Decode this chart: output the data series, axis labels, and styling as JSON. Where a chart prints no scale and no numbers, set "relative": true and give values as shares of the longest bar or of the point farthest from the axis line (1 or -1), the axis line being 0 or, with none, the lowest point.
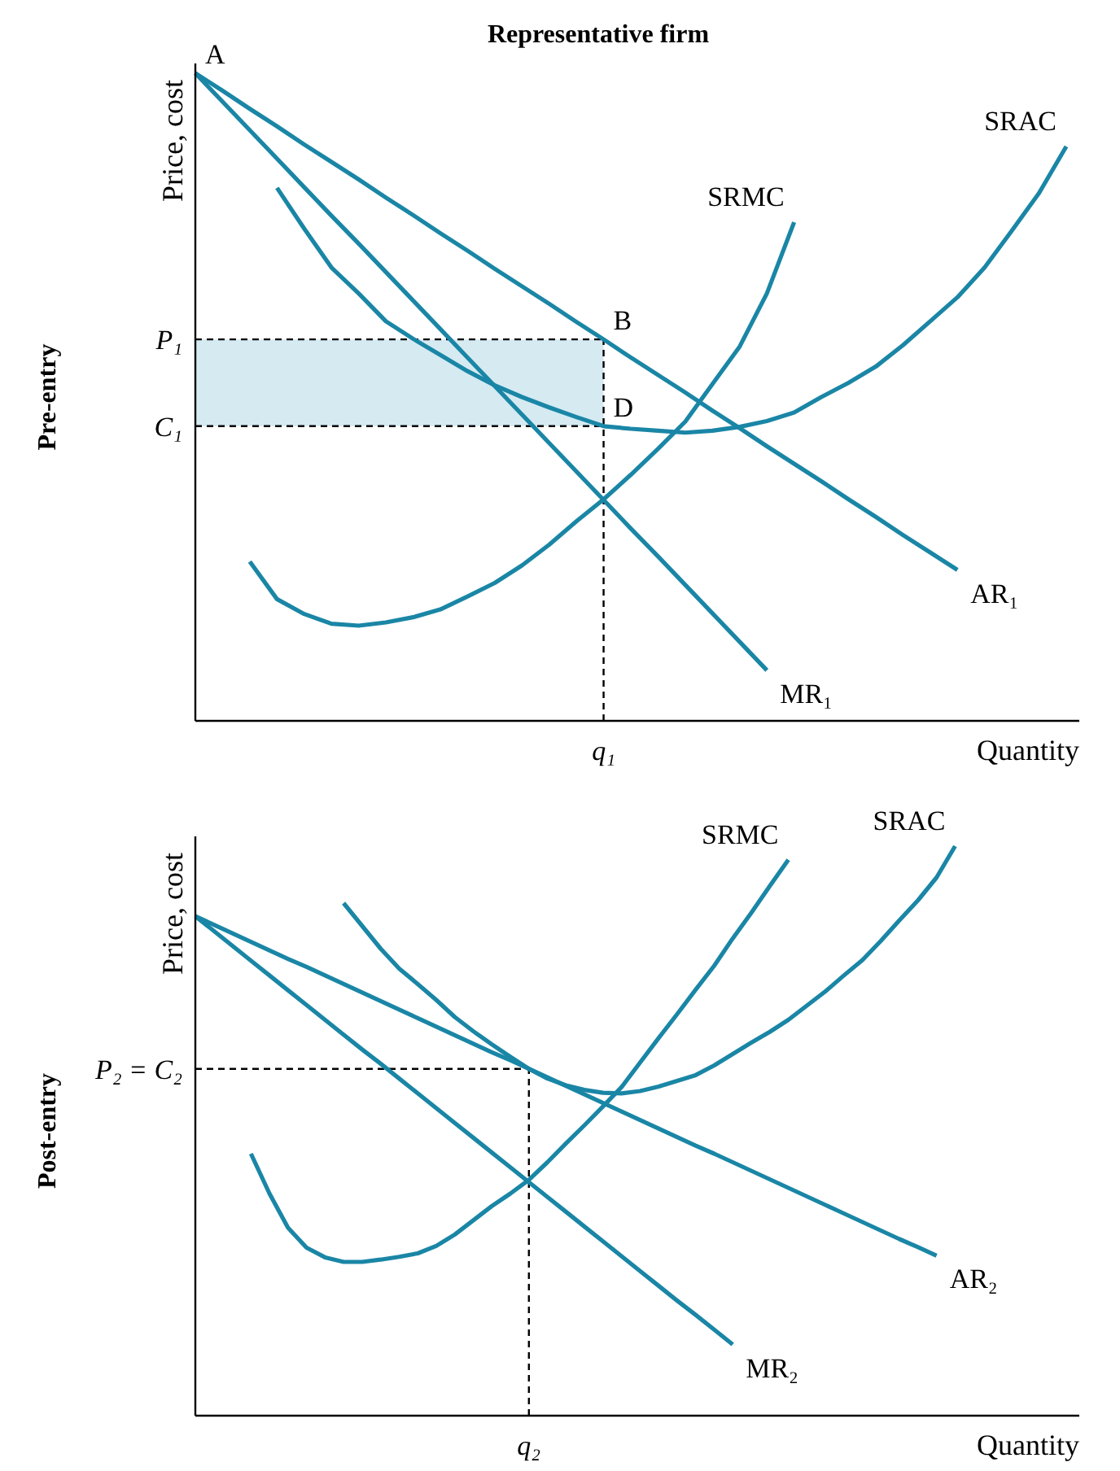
{
  "chart_data": [
    {
      "type": "line",
      "title": "Representative firm",
      "xlabel": "Quantity",
      "ylabel": "Price, cost",
      "relative": true,
      "categories": [
        null,
        null,
        null,
        null,
        null,
        null,
        null,
        null,
        null,
        null,
        null,
        null,
        null,
        null,
        null,
        null,
        null,
        null,
        null,
        null,
        null,
        null,
        null,
        null,
        null,
        null,
        null,
        null,
        null,
        null,
        null,
        null,
        null
      ],
      "series": [
        {
          "name": "AR₁",
          "color": "#1a86a6",
          "values": [
            1,
            0.973,
            0.945,
            0.918,
            0.89,
            0.863,
            0.836,
            0.808,
            0.781,
            0.753,
            0.726,
            0.698,
            0.671,
            0.644,
            0.616,
            0.589,
            0.561,
            0.534,
            0.507,
            0.479,
            0.452,
            0.424,
            0.397,
            0.37,
            0.342,
            0.315,
            0.287,
            0.26,
            0.233,
            null,
            null,
            null,
            null
          ]
        },
        {
          "name": "MR₁",
          "color": "#1a86a6",
          "values": [
            1,
            0.956,
            0.912,
            0.868,
            0.824,
            0.78,
            0.737,
            0.693,
            0.649,
            0.605,
            0.561,
            0.517,
            0.473,
            0.429,
            0.385,
            0.341,
            0.297,
            0.254,
            0.21,
            0.166,
            0.122,
            0.078,
            null,
            null,
            null,
            null,
            null,
            null,
            null,
            null,
            null,
            null,
            null
          ]
        },
        {
          "name": "SRMC",
          "color": "#1a86a6",
          "values": [
            null,
            null,
            0.246,
            0.188,
            0.165,
            0.15,
            0.147,
            0.152,
            0.16,
            0.172,
            0.192,
            0.213,
            0.24,
            0.272,
            0.308,
            0.342,
            0.38,
            0.42,
            0.462,
            0.52,
            0.578,
            0.66,
            0.77,
            null,
            null,
            null,
            null,
            null,
            null,
            null,
            null,
            null,
            null
          ]
        },
        {
          "name": "SRAC",
          "color": "#1a86a6",
          "values": [
            null,
            null,
            null,
            0.823,
            0.76,
            0.7,
            0.66,
            0.617,
            0.59,
            0.565,
            0.54,
            0.518,
            0.5,
            0.484,
            0.469,
            0.455,
            0.451,
            0.448,
            0.445,
            0.448,
            0.454,
            0.463,
            0.476,
            0.5,
            0.522,
            0.547,
            0.58,
            0.617,
            0.654,
            0.7,
            0.757,
            0.815,
            0.887
          ]
        }
      ],
      "ref_lines": [
        {
          "axis": "y",
          "value": 0.589,
          "label": "P₁",
          "line_style": "dashed"
        },
        {
          "axis": "y",
          "value": 0.455,
          "label": "C₁",
          "line_style": "dashed"
        }
      ],
      "bands": [
        {
          "axis": "y",
          "from": 0.455,
          "to": 0.589,
          "color": "#d6eaf2"
        }
      ],
      "annotations": [
        "Pre-entry",
        "A",
        "B",
        "D",
        "q₁"
      ]
    },
    {
      "type": "line",
      "xlabel": "Quantity",
      "ylabel": "Price, cost",
      "relative": true,
      "categories": [
        null,
        null,
        null,
        null,
        null,
        null,
        null,
        null,
        null,
        null,
        null,
        null,
        null,
        null,
        null,
        null,
        null,
        null,
        null,
        null,
        null,
        null,
        null,
        null,
        null,
        null,
        null,
        null,
        null,
        null,
        null,
        null,
        null,
        null,
        null,
        null,
        null,
        null,
        null,
        null,
        null,
        null,
        null,
        null,
        null,
        null,
        null,
        null
      ],
      "series": [
        {
          "name": "AR₂",
          "color": "#1a86a6",
          "values": [
            0.877,
            0.862,
            0.847,
            0.832,
            0.817,
            0.802,
            0.788,
            0.773,
            0.758,
            0.743,
            0.728,
            0.713,
            0.698,
            0.683,
            0.668,
            0.653,
            0.638,
            0.624,
            0.609,
            0.594,
            0.579,
            0.564,
            0.549,
            0.534,
            0.519,
            0.504,
            0.489,
            0.474,
            0.46,
            0.445,
            0.43,
            0.415,
            0.4,
            0.385,
            0.37,
            0.355,
            0.34,
            0.325,
            0.31,
            0.296,
            0.281,
            null,
            null,
            null,
            null,
            null,
            null,
            null
          ]
        },
        {
          "name": "MR₂",
          "color": "#1a86a6",
          "values": [
            0.877,
            0.851,
            0.825,
            0.799,
            0.773,
            0.747,
            0.721,
            0.695,
            0.669,
            0.643,
            0.618,
            0.592,
            0.566,
            0.54,
            0.514,
            0.488,
            0.462,
            0.436,
            0.41,
            0.384,
            0.358,
            0.332,
            0.306,
            0.28,
            0.254,
            0.228,
            0.202,
            0.177,
            0.151,
            0.125,
            null,
            null,
            null,
            null,
            null,
            null,
            null,
            null,
            null,
            null,
            null,
            null,
            null,
            null,
            null,
            null,
            null,
            null
          ]
        },
        {
          "name": "SRMC",
          "color": "#1a86a6",
          "values": [
            null,
            null,
            null,
            0.46,
            0.39,
            0.33,
            0.295,
            0.278,
            0.27,
            0.27,
            0.274,
            0.279,
            0.285,
            0.298,
            0.318,
            0.343,
            0.368,
            0.39,
            0.414,
            0.445,
            0.478,
            0.51,
            0.543,
            0.577,
            0.62,
            0.663,
            0.705,
            0.748,
            0.79,
            0.838,
            0.883,
            0.93,
            0.976,
            null,
            null,
            null,
            null,
            null,
            null,
            null,
            null,
            null,
            null,
            null,
            null,
            null,
            null,
            null
          ]
        },
        {
          "name": "SRAC",
          "color": "#1a86a6",
          "values": [
            null,
            null,
            null,
            null,
            null,
            null,
            null,
            null,
            0.9,
            0.86,
            0.82,
            0.785,
            0.758,
            0.73,
            0.7,
            0.675,
            0.652,
            0.63,
            0.609,
            0.592,
            0.58,
            0.572,
            0.567,
            0.566,
            0.57,
            0.578,
            0.588,
            0.598,
            0.615,
            0.635,
            0.655,
            0.674,
            0.695,
            0.72,
            0.745,
            0.773,
            0.8,
            0.834,
            0.87,
            0.905,
            0.945,
            1,
            null,
            null,
            null,
            null,
            null,
            null
          ]
        }
      ],
      "ref_lines": [
        {
          "axis": "y",
          "value": 0.609,
          "label": "P₂ = C₂",
          "line_style": "dashed"
        }
      ],
      "annotations": [
        "Post-entry",
        "q₂"
      ]
    }
  ]
}
